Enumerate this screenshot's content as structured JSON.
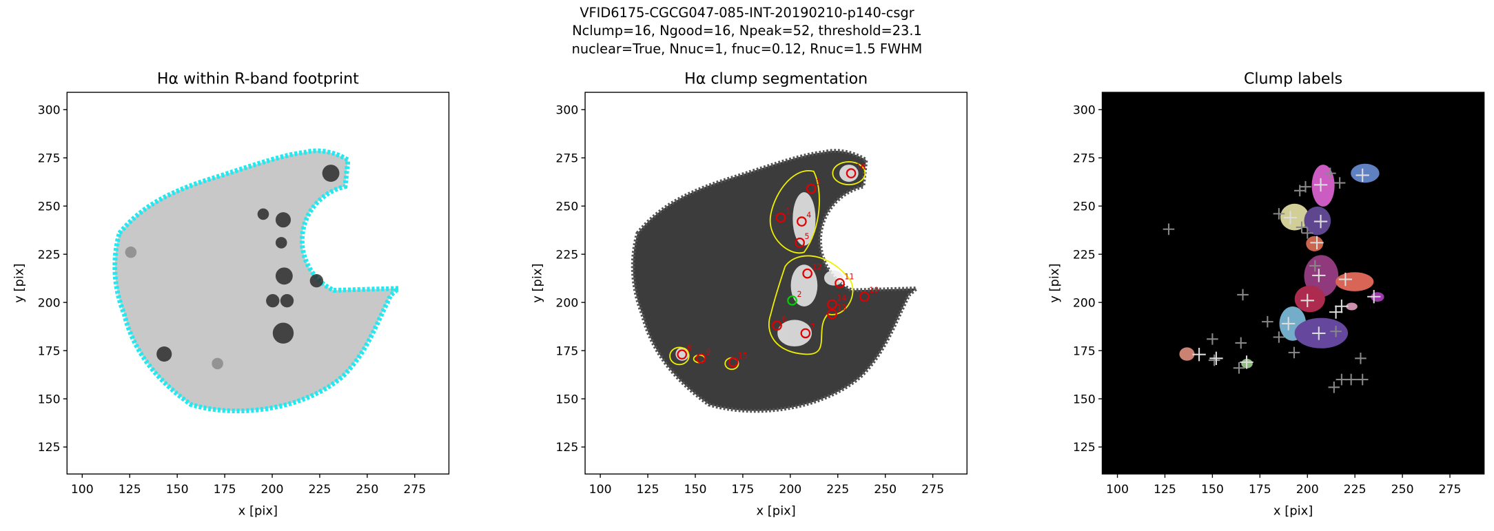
{
  "suptitle": [
    "VFID6175-CGCG047-085-INT-20190210-p140-csgr",
    "Nclump=16, Ngood=16, Npeak=52, threshold=23.1",
    "nuclear=True, Nnuc=1, fnuc=0.12, Rnuc=1.5 FWHM"
  ],
  "chart_data": [
    {
      "type": "image",
      "title": "Hα within R-band footprint",
      "xlabel": "x [pix]",
      "ylabel": "y [pix]",
      "xlim": [
        92,
        293
      ],
      "ylim": [
        111,
        309
      ],
      "xticks": [
        100,
        125,
        150,
        175,
        200,
        225,
        250,
        275
      ],
      "yticks": [
        125,
        150,
        175,
        200,
        225,
        250,
        275,
        300
      ]
    },
    {
      "type": "image",
      "title": "Hα clump segmentation",
      "xlabel": "x [pix]",
      "ylabel": "y [pix]",
      "xlim": [
        92,
        293
      ],
      "ylim": [
        111,
        309
      ],
      "xticks": [
        100,
        125,
        150,
        175,
        200,
        225,
        250,
        275
      ],
      "yticks": [
        125,
        150,
        175,
        200,
        225,
        250,
        275,
        300
      ],
      "clumps": {
        "x": [
          232,
          211,
          195,
          206,
          205,
          209,
          226,
          239,
          222,
          222,
          201,
          193,
          208,
          143,
          153,
          170
        ],
        "y": [
          267,
          259,
          244,
          242,
          231,
          215,
          210,
          203,
          199,
          194,
          201,
          188,
          184,
          173,
          171,
          169
        ],
        "labels": [
          "16",
          "3",
          "1",
          "4",
          "5",
          "12",
          "11",
          "10",
          "14",
          "13",
          "2",
          "6",
          "7",
          "8",
          "9",
          "15"
        ],
        "nuclear": [
          false,
          false,
          false,
          false,
          false,
          false,
          false,
          false,
          false,
          false,
          true,
          false,
          false,
          false,
          false,
          false
        ]
      }
    },
    {
      "type": "image",
      "title": "Clump labels",
      "xlabel": "x [pix]",
      "ylabel": "y [pix]",
      "xlim": [
        92,
        293
      ],
      "ylim": [
        111,
        309
      ],
      "xticks": [
        100,
        125,
        150,
        175,
        200,
        225,
        250,
        275
      ],
      "yticks": [
        125,
        150,
        175,
        200,
        225,
        250,
        275,
        300
      ],
      "clumps": {
        "x": [
          229,
          207,
          191,
          207,
          205,
          206,
          220,
          235,
          218,
          215,
          200,
          190,
          206,
          143,
          152,
          168
        ],
        "y": [
          266,
          261,
          244,
          242,
          231,
          214,
          212,
          203,
          198,
          195,
          201,
          189,
          184,
          173,
          171,
          169
        ]
      },
      "peaks": {
        "x": [
          127,
          185,
          196,
          199,
          197,
          200,
          212,
          217,
          204,
          166,
          150,
          165,
          179,
          185,
          193,
          214,
          218,
          223,
          229,
          215,
          151,
          164,
          228
        ],
        "y": [
          238,
          246,
          258,
          260,
          239,
          236,
          267,
          262,
          219,
          204,
          181,
          179,
          190,
          182,
          174,
          156,
          160,
          160,
          160,
          185,
          170,
          166,
          171
        ]
      }
    }
  ]
}
